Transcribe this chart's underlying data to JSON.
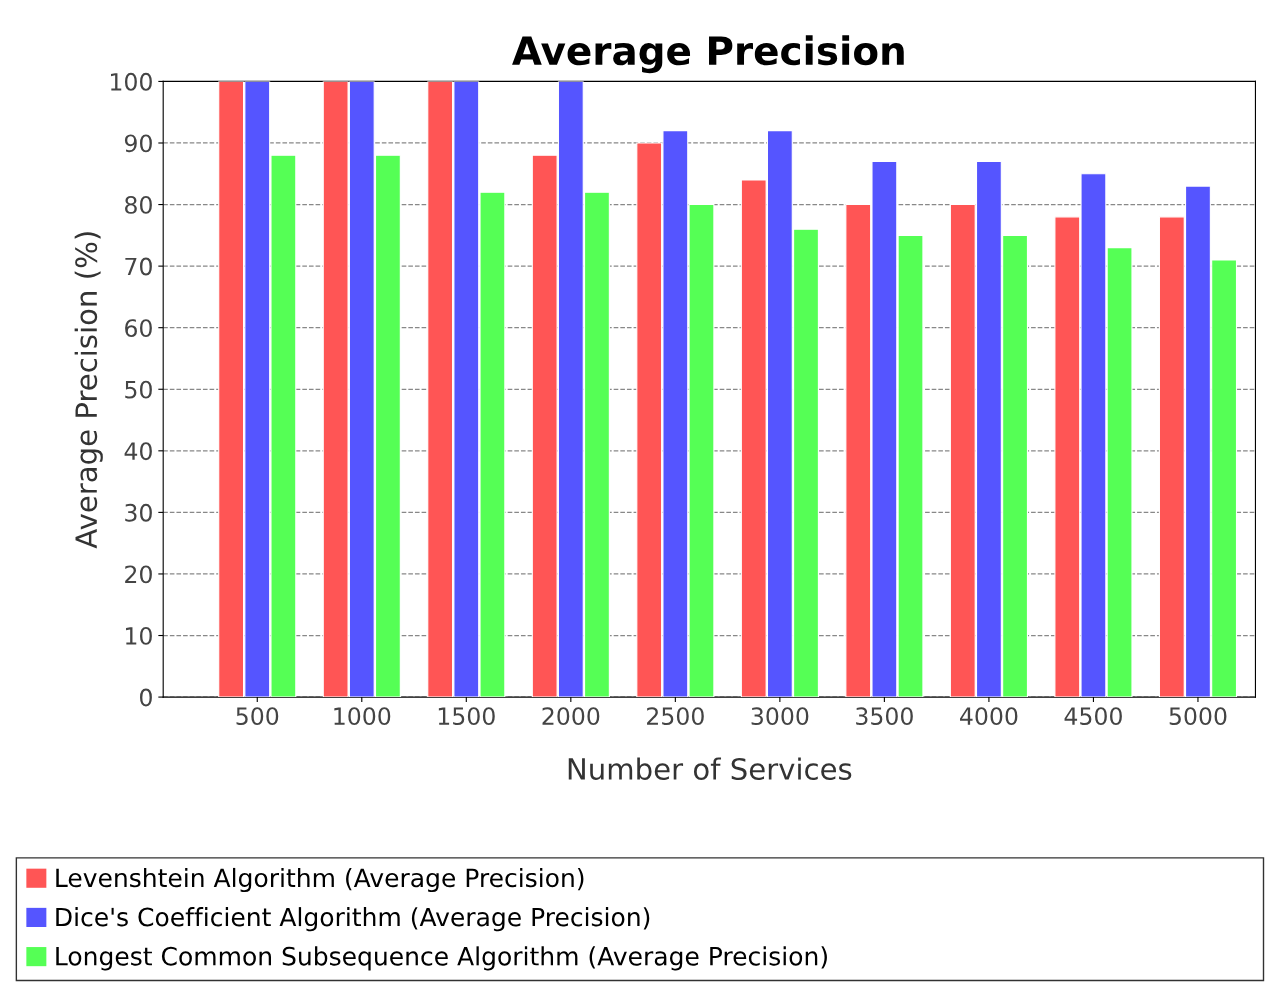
{
  "chart_data": {
    "type": "bar",
    "title": "Average Precision",
    "xlabel": "Number of Services",
    "ylabel": "Average Precision (%)",
    "categories": [
      "500",
      "1000",
      "1500",
      "2000",
      "2500",
      "3000",
      "3500",
      "4000",
      "4500",
      "5000"
    ],
    "series": [
      {
        "name": "Levenshtein Algorithm (Average Precision)",
        "color": "#ff5555",
        "values": [
          100,
          100,
          100,
          88,
          90,
          84,
          80,
          80,
          78,
          78
        ]
      },
      {
        "name": "Dice's Coefficient Algorithm (Average Precision)",
        "color": "#5555ff",
        "values": [
          100,
          100,
          100,
          100,
          92,
          92,
          87,
          87,
          85,
          83
        ]
      },
      {
        "name": "Longest Common Subsequence Algorithm (Average Precision)",
        "color": "#55ff55",
        "values": [
          88,
          88,
          82,
          82,
          80,
          76,
          75,
          75,
          73,
          71
        ]
      }
    ],
    "ylim": [
      0,
      100
    ],
    "yticks": [
      0,
      10,
      20,
      30,
      40,
      50,
      60,
      70,
      80,
      90,
      100
    ],
    "grid": "y",
    "legend": "bottom"
  }
}
